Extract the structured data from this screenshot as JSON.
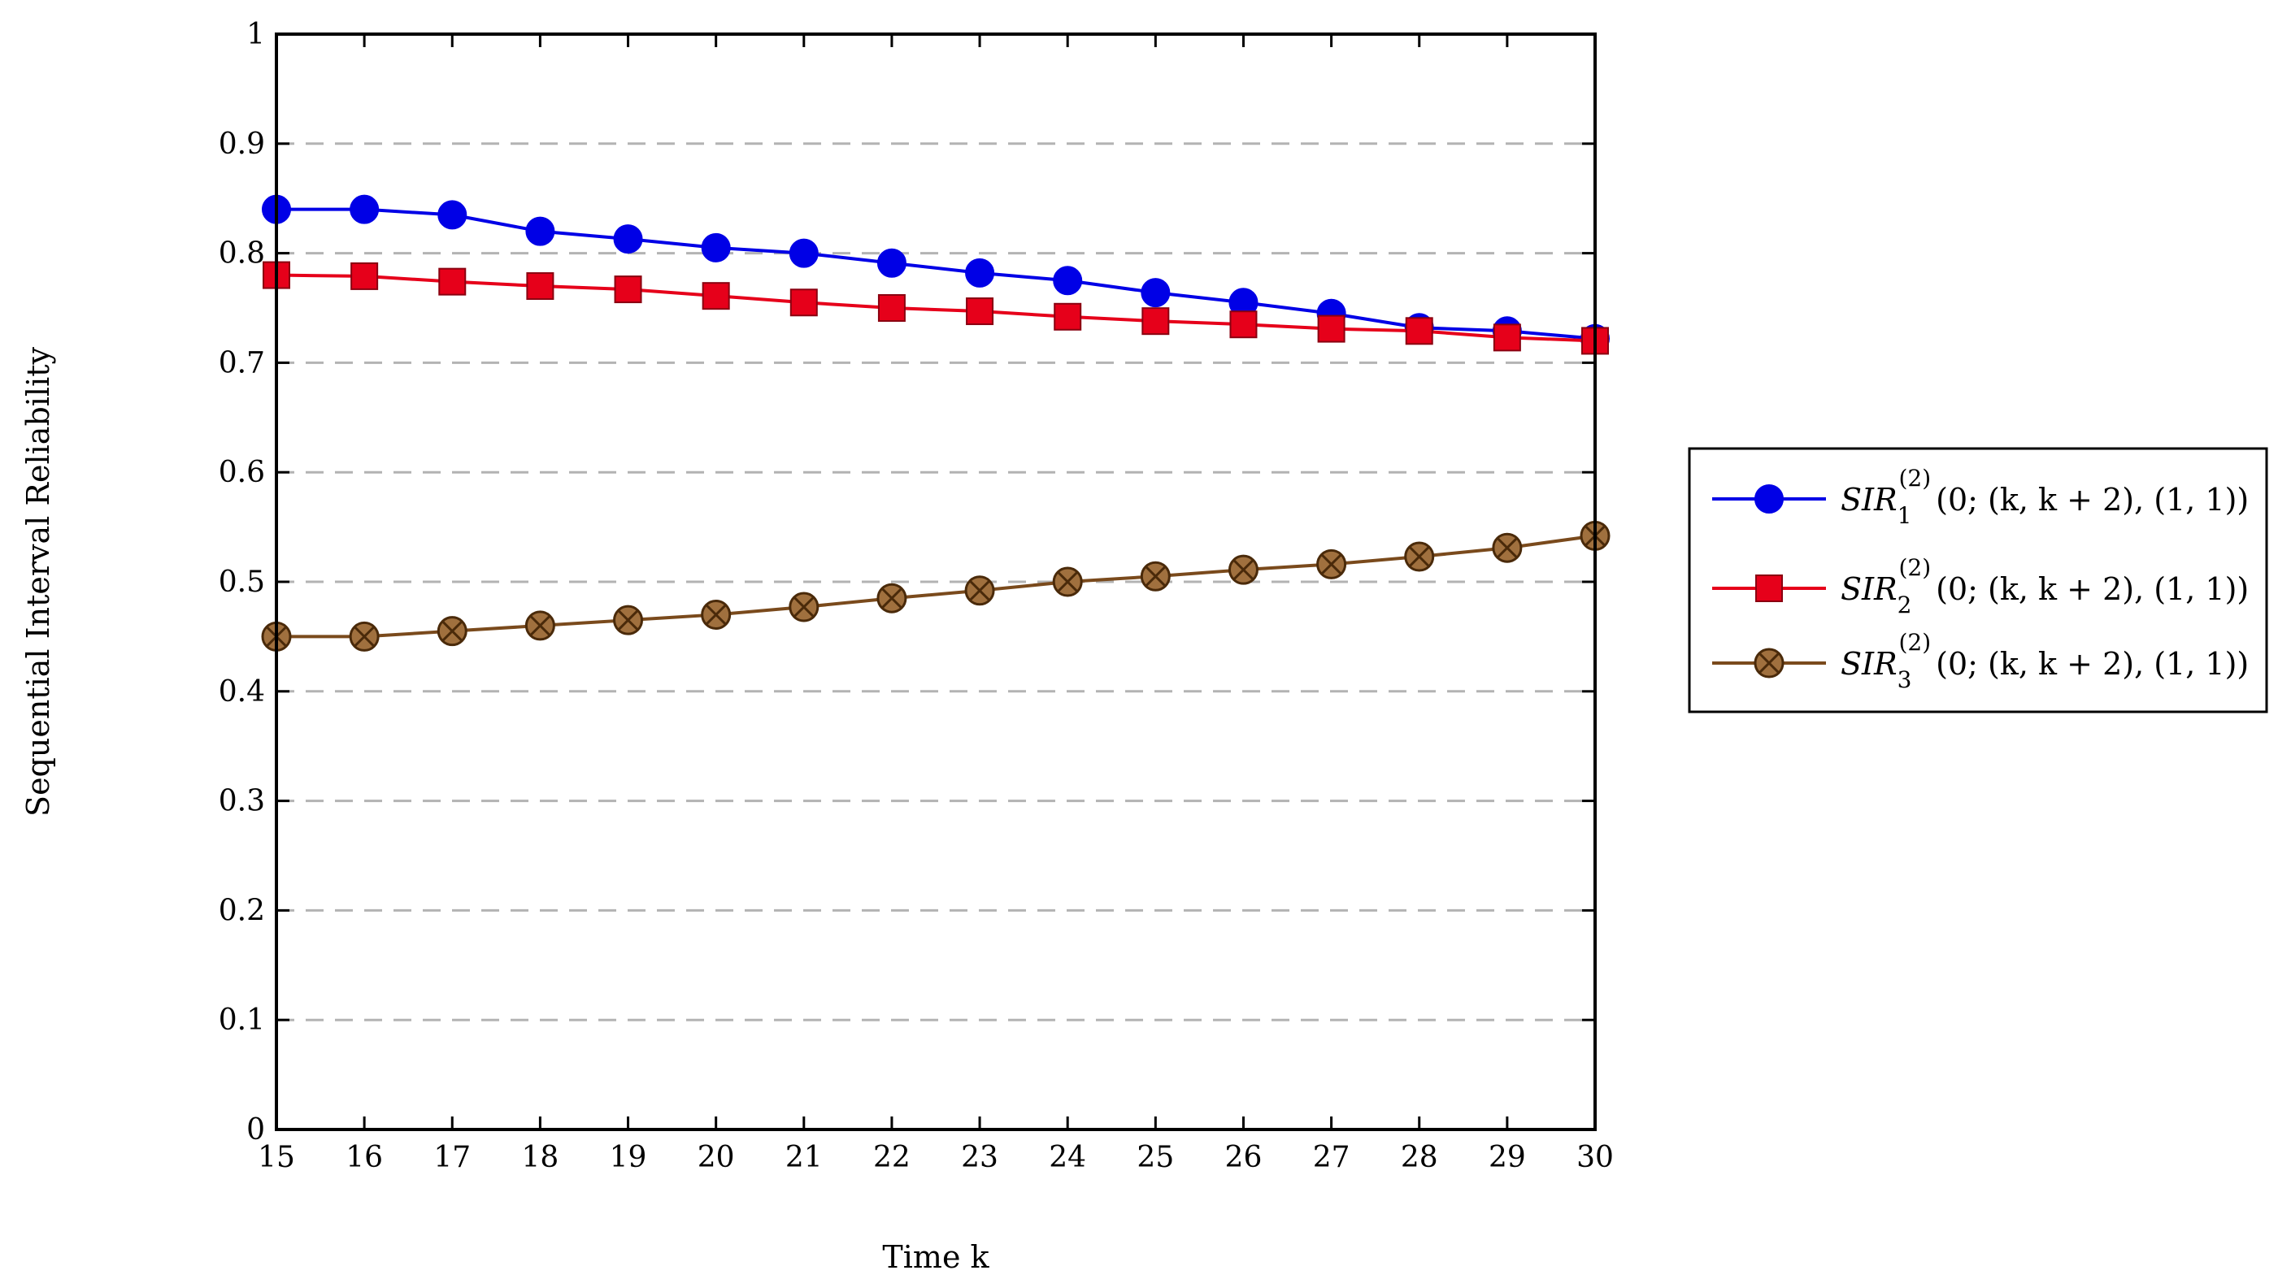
{
  "chart_data": {
    "type": "line",
    "title": "",
    "xlabel": "Time k",
    "ylabel": "Sequential Interval Reliability",
    "x": [
      15,
      16,
      17,
      18,
      19,
      20,
      21,
      22,
      23,
      24,
      25,
      26,
      27,
      28,
      29,
      30
    ],
    "xlim": [
      15,
      30
    ],
    "ylim": [
      0,
      1
    ],
    "x_ticks": [
      "15",
      "16",
      "17",
      "18",
      "19",
      "20",
      "21",
      "22",
      "23",
      "24",
      "25",
      "26",
      "27",
      "28",
      "29",
      "30"
    ],
    "y_ticks": [
      "0",
      "0.1",
      "0.2",
      "0.3",
      "0.4",
      "0.5",
      "0.6",
      "0.7",
      "0.8",
      "0.9",
      "1"
    ],
    "y_tick_values": [
      0,
      0.1,
      0.2,
      0.3,
      0.4,
      0.5,
      0.6,
      0.7,
      0.8,
      0.9,
      1
    ],
    "grid": "horizontal dashed",
    "legend_position": "right, outside plot",
    "series": [
      {
        "name": "SIR_1^{(2)}(0;(k,k+2),(1,1))",
        "legend": {
          "base": "SIR",
          "sub": "1",
          "sup": "(2)",
          "args": "(0; (k, k + 2), (1, 1))"
        },
        "color": "#0000e6",
        "marker": "circle",
        "values": [
          0.84,
          0.84,
          0.835,
          0.82,
          0.813,
          0.805,
          0.8,
          0.791,
          0.782,
          0.775,
          0.764,
          0.755,
          0.745,
          0.732,
          0.729,
          0.722
        ]
      },
      {
        "name": "SIR_2^{(2)}(0;(k,k+2),(1,1))",
        "legend": {
          "base": "SIR",
          "sub": "2",
          "sup": "(2)",
          "args": "(0; (k, k + 2), (1, 1))"
        },
        "color": "#e6001a",
        "marker": "square",
        "values": [
          0.78,
          0.779,
          0.774,
          0.77,
          0.767,
          0.761,
          0.755,
          0.75,
          0.747,
          0.742,
          0.738,
          0.735,
          0.731,
          0.729,
          0.723,
          0.72
        ]
      },
      {
        "name": "SIR_3^{(2)}(0;(k,k+2),(1,1))",
        "legend": {
          "base": "SIR",
          "sub": "3",
          "sup": "(2)",
          "args": "(0; (k, k + 2), (1, 1))"
        },
        "color": "#7a4a1c",
        "marker": "otimes",
        "values": [
          0.45,
          0.45,
          0.455,
          0.46,
          0.465,
          0.47,
          0.477,
          0.485,
          0.492,
          0.5,
          0.505,
          0.511,
          0.516,
          0.523,
          0.531,
          0.542
        ]
      }
    ]
  }
}
